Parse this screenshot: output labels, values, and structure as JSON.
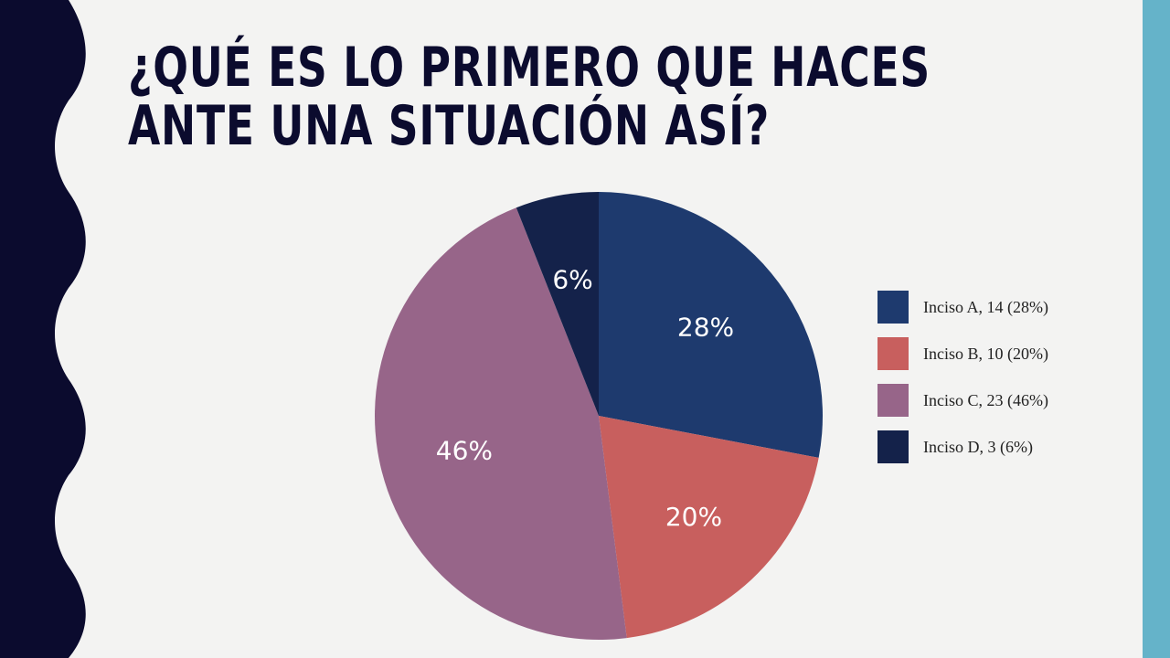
{
  "slide": {
    "title_lines": [
      "¿Qué es lo primero que haces",
      "ante una situación así?"
    ],
    "colors": {
      "background": "#f3f3f2",
      "left_band": "#0b0b2e",
      "right_band": "#65b3c9",
      "title_text": "#0b0b2e"
    }
  },
  "chart_data": {
    "type": "pie",
    "title": "¿Qué es lo primero que haces ante una situación así?",
    "start_angle_deg": 0,
    "direction": "clockwise",
    "legend_position": "right",
    "slices": [
      {
        "category": "Inciso A",
        "value": 14,
        "percent_label": "28%",
        "legend_label": "Inciso A, 14 (28%)",
        "color": "#1e3a6e"
      },
      {
        "category": "Inciso B",
        "value": 10,
        "percent_label": "20%",
        "legend_label": "Inciso B, 10 (20%)",
        "color": "#c85f5e"
      },
      {
        "category": "Inciso C",
        "value": 23,
        "percent_label": "46%",
        "legend_label": "Inciso C, 23 (46%)",
        "color": "#976589"
      },
      {
        "category": "Inciso D",
        "value": 3,
        "percent_label": "6%",
        "legend_label": "Inciso D, 3 (6%)",
        "color": "#14224a"
      }
    ]
  }
}
